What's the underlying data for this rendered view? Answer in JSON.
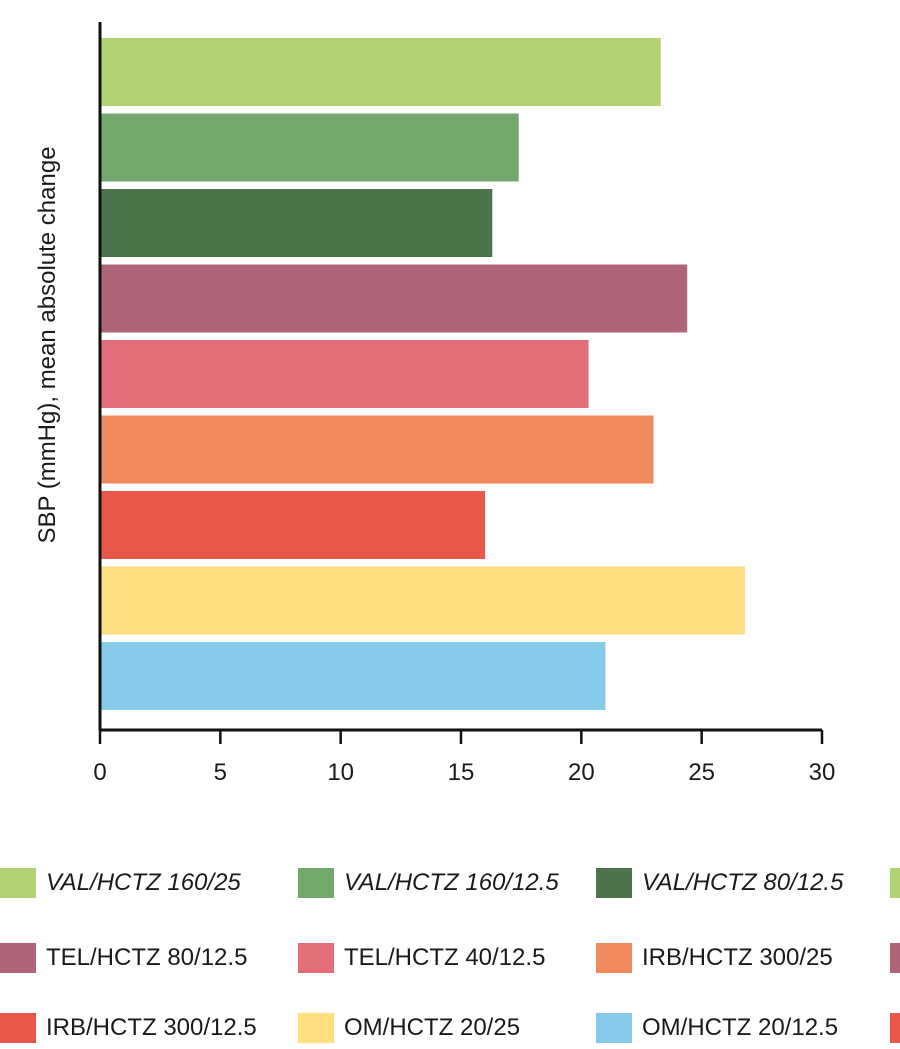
{
  "chart_data": {
    "type": "bar",
    "orientation": "horizontal",
    "ylabel": "SBP (mmHg), mean absolute change",
    "xlim": [
      0,
      30
    ],
    "xticks": [
      0,
      5,
      10,
      15,
      20,
      25,
      30
    ],
    "grid": false,
    "legend_position": "bottom",
    "bars": [
      {
        "series": "VAL/HCTZ 160/25",
        "value": 23.3,
        "color": "#b2d373"
      },
      {
        "series": "VAL/HCTZ 160/12.5",
        "value": 17.4,
        "color": "#72a86c"
      },
      {
        "series": "VAL/HCTZ 80/12.5",
        "value": 16.3,
        "color": "#4c734a"
      },
      {
        "series": "TEL/HCTZ 80/12.5",
        "value": 24.4,
        "color": "#b06478"
      },
      {
        "series": "TEL/HCTZ 40/12.5",
        "value": 20.3,
        "color": "#e36d79"
      },
      {
        "series": "IRB/HCTZ 300/25",
        "value": 23.0,
        "color": "#f08a5d"
      },
      {
        "series": "IRB/HCTZ 300/12.5",
        "value": 16.0,
        "color": "#e9564a"
      },
      {
        "series": "OM/HCTZ 20/25",
        "value": 26.8,
        "color": "#fede7f"
      },
      {
        "series": "OM/HCTZ 20/12.5",
        "value": 21.0,
        "color": "#86cbe9"
      }
    ],
    "legend": [
      {
        "label": "VAL/HCTZ 160/25",
        "color": "#b2d373",
        "italic": true
      },
      {
        "label": "VAL/HCTZ 160/12.5",
        "color": "#72a86c",
        "italic": true
      },
      {
        "label": "VAL/HCTZ 80/12.5",
        "color": "#4c734a",
        "italic": true
      },
      {
        "label": "TEL/HCTZ 80/12.5",
        "color": "#b06478",
        "italic": false
      },
      {
        "label": "TEL/HCTZ 40/12.5",
        "color": "#e36d79",
        "italic": false
      },
      {
        "label": "IRB/HCTZ 300/25",
        "color": "#f08a5d",
        "italic": false
      },
      {
        "label": "IRB/HCTZ 300/12.5",
        "color": "#e9564a",
        "italic": false
      },
      {
        "label": "OM/HCTZ 20/25",
        "color": "#fede7f",
        "italic": false
      },
      {
        "label": "OM/HCTZ 20/12.5",
        "color": "#86cbe9",
        "italic": false
      }
    ],
    "legend_edge_swatches": [
      "#b2d373",
      "#b06478",
      "#e9564a"
    ]
  }
}
